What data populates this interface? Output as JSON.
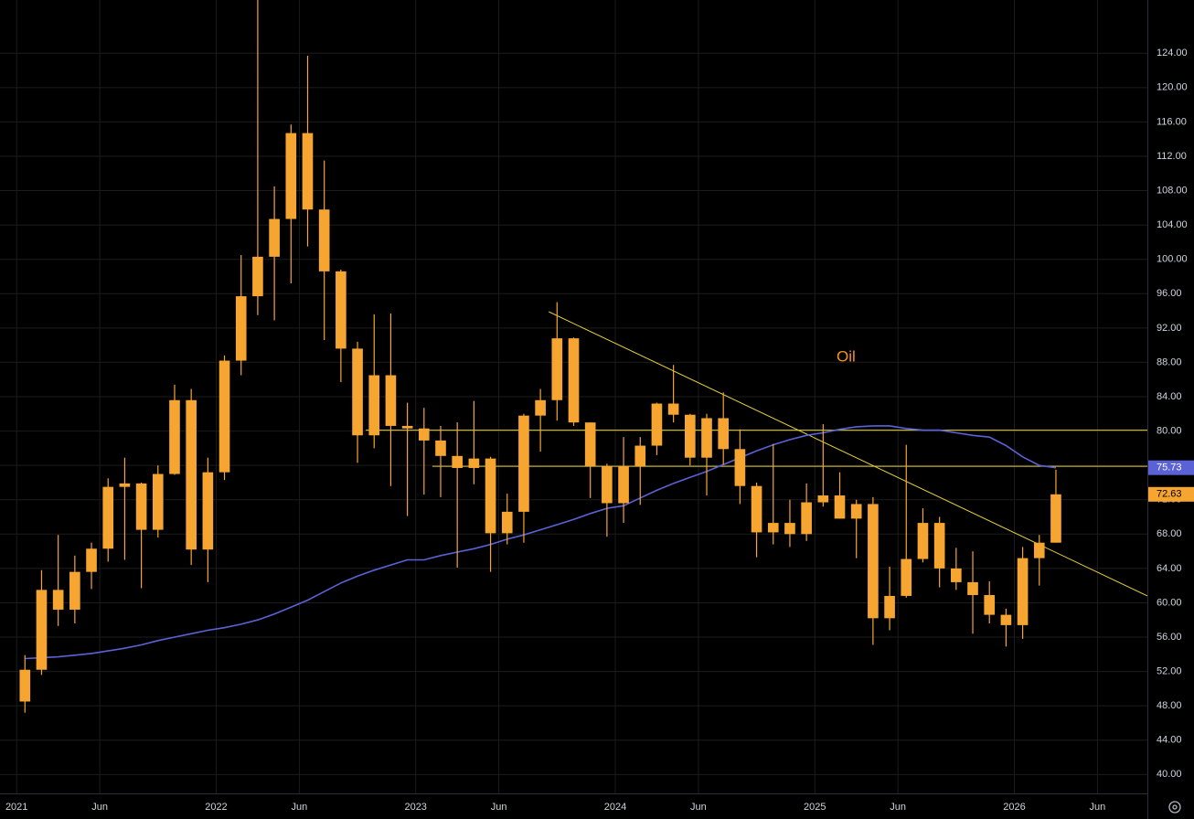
{
  "chart_data": {
    "type": "candlestick",
    "title": "Oil",
    "x": [
      "2021-01",
      "2021-02",
      "2021-03",
      "2021-04",
      "2021-05",
      "2021-06",
      "2021-07",
      "2021-08",
      "2021-09",
      "2021-10",
      "2021-11",
      "2021-12",
      "2022-01",
      "2022-02",
      "2022-03",
      "2022-04",
      "2022-05",
      "2022-06",
      "2022-07",
      "2022-08",
      "2022-09",
      "2022-10",
      "2022-11",
      "2022-12",
      "2023-01",
      "2023-02",
      "2023-03",
      "2023-04",
      "2023-05",
      "2023-06",
      "2023-07",
      "2023-08",
      "2023-09",
      "2023-10",
      "2023-11",
      "2023-12",
      "2024-01",
      "2024-02",
      "2024-03",
      "2024-04",
      "2024-05",
      "2024-06",
      "2024-07",
      "2024-08",
      "2024-09",
      "2024-10",
      "2024-11",
      "2024-12",
      "2025-01",
      "2025-02",
      "2025-03",
      "2025-04",
      "2025-05",
      "2025-06",
      "2025-07",
      "2025-08",
      "2025-09",
      "2025-10",
      "2025-11",
      "2025-12",
      "2026-01",
      "2026-02",
      "2026-03"
    ],
    "open": [
      48.5,
      52.2,
      61.5,
      59.2,
      63.6,
      66.3,
      73.5,
      73.9,
      68.5,
      75.0,
      83.6,
      66.2,
      75.2,
      88.2,
      95.7,
      100.3,
      104.7,
      114.7,
      105.8,
      98.6,
      89.6,
      79.5,
      86.5,
      80.6,
      80.3,
      78.9,
      77.1,
      75.7,
      76.8,
      68.1,
      70.6,
      81.8,
      83.6,
      90.8,
      81.0,
      75.9,
      71.6,
      75.9,
      78.3,
      83.2,
      81.9,
      76.9,
      81.5,
      77.9,
      73.6,
      68.2,
      69.3,
      68.0,
      71.7,
      72.5,
      69.8,
      71.5,
      58.2,
      60.8,
      65.1,
      69.3,
      64.0,
      62.4,
      60.9,
      58.6,
      57.4,
      65.2,
      67.0
    ],
    "high": [
      53.9,
      63.8,
      67.9,
      65.5,
      67.0,
      74.5,
      76.9,
      74.0,
      76.0,
      85.4,
      84.9,
      76.9,
      88.8,
      100.5,
      130.5,
      108.5,
      115.7,
      123.7,
      111.5,
      98.8,
      90.4,
      93.6,
      93.7,
      83.3,
      82.7,
      80.6,
      81.0,
      83.5,
      77.0,
      72.7,
      82.0,
      84.9,
      95.0,
      90.9,
      81.0,
      76.2,
      79.3,
      79.3,
      83.3,
      87.7,
      82.0,
      82.0,
      84.5,
      80.2,
      74.0,
      78.5,
      72.0,
      73.9,
      80.8,
      75.2,
      72.0,
      72.3,
      64.2,
      78.4,
      71.0,
      70.0,
      66.4,
      66.0,
      62.5,
      59.3,
      66.5,
      67.9,
      75.5
    ],
    "low": [
      47.2,
      51.6,
      57.3,
      57.6,
      61.6,
      64.8,
      65.0,
      61.7,
      67.6,
      74.9,
      64.4,
      62.4,
      74.3,
      86.5,
      93.5,
      92.9,
      97.2,
      101.5,
      90.6,
      85.7,
      76.3,
      78.0,
      73.6,
      70.1,
      72.6,
      72.3,
      64.1,
      73.8,
      63.6,
      66.8,
      67.0,
      77.6,
      81.2,
      80.6,
      72.2,
      67.7,
      69.3,
      71.4,
      77.2,
      81.0,
      76.0,
      72.5,
      76.1,
      71.5,
      65.3,
      66.8,
      66.5,
      67.2,
      71.2,
      69.8,
      65.2,
      55.1,
      56.8,
      60.6,
      64.7,
      61.8,
      61.5,
      56.4,
      57.6,
      54.9,
      55.8,
      62.0,
      67.0
    ],
    "close": [
      52.2,
      61.5,
      59.2,
      63.6,
      66.3,
      73.5,
      73.9,
      68.5,
      75.0,
      83.6,
      66.2,
      75.2,
      88.2,
      95.7,
      100.3,
      104.7,
      114.7,
      105.8,
      98.6,
      89.6,
      79.5,
      86.5,
      80.6,
      80.3,
      78.9,
      77.1,
      75.7,
      76.8,
      68.1,
      70.6,
      81.8,
      83.6,
      90.8,
      81.0,
      75.9,
      71.6,
      75.9,
      78.3,
      83.2,
      81.9,
      76.9,
      81.5,
      77.9,
      73.6,
      68.2,
      69.3,
      68.0,
      71.7,
      72.5,
      69.8,
      71.5,
      58.2,
      60.8,
      65.1,
      69.3,
      64.0,
      62.4,
      60.9,
      58.6,
      57.4,
      65.2,
      67.0,
      72.63
    ],
    "color": "#f7a531",
    "overlay": {
      "color": "#5b62d6",
      "values": [
        53.5,
        53.6,
        53.7,
        53.9,
        54.1,
        54.4,
        54.7,
        55.1,
        55.6,
        56.0,
        56.4,
        56.8,
        57.1,
        57.5,
        58.0,
        58.7,
        59.5,
        60.3,
        61.3,
        62.3,
        63.1,
        63.8,
        64.4,
        65.0,
        65.0,
        65.5,
        65.9,
        66.3,
        66.8,
        67.4,
        67.9,
        68.5,
        69.1,
        69.7,
        70.4,
        71.0,
        71.3,
        72.2,
        73.1,
        73.9,
        74.6,
        75.3,
        76.1,
        76.9,
        77.7,
        78.4,
        79.0,
        79.5,
        79.8,
        80.2,
        80.5,
        80.6,
        80.6,
        80.3,
        80.1,
        80.1,
        79.8,
        79.5,
        79.3,
        78.3,
        77.0,
        76.0,
        75.73
      ]
    },
    "hlines": [
      {
        "value": 80.1,
        "start": "2022-10"
      },
      {
        "value": 75.9,
        "start": "2023-02"
      }
    ],
    "drawing_color": "#e6d13a",
    "trendline": {
      "x": [
        "2023-09",
        "2026-09"
      ],
      "values": [
        93.9,
        60.8
      ]
    },
    "xlim": [
      "2020-12",
      "2026-09"
    ],
    "xticks": [
      {
        "value": "2021-01",
        "label": "2021"
      },
      {
        "value": "2021-06",
        "label": "Jun"
      },
      {
        "value": "2022-01",
        "label": "2022"
      },
      {
        "value": "2022-06",
        "label": "Jun"
      },
      {
        "value": "2023-01",
        "label": "2023"
      },
      {
        "value": "2023-06",
        "label": "Jun"
      },
      {
        "value": "2024-01",
        "label": "2024"
      },
      {
        "value": "2024-06",
        "label": "Jun"
      },
      {
        "value": "2025-01",
        "label": "2025"
      },
      {
        "value": "2025-06",
        "label": "Jun"
      },
      {
        "value": "2026-01",
        "label": "2026"
      },
      {
        "value": "2026-06",
        "label": "Jun"
      }
    ],
    "ylim": [
      37.8,
      130.2
    ],
    "yticks": [
      {
        "value": 40,
        "label": "40.00"
      },
      {
        "value": 44,
        "label": "44.00"
      },
      {
        "value": 48,
        "label": "48.00"
      },
      {
        "value": 52,
        "label": "52.00"
      },
      {
        "value": 56,
        "label": "56.00"
      },
      {
        "value": 60,
        "label": "60.00"
      },
      {
        "value": 64,
        "label": "64.00"
      },
      {
        "value": 68,
        "label": "68.00"
      },
      {
        "value": 72,
        "label": "72.00"
      },
      {
        "value": 76,
        "label": "76.00"
      },
      {
        "value": 80,
        "label": "80.00"
      },
      {
        "value": 84,
        "label": "84.00"
      },
      {
        "value": 88,
        "label": "88.00"
      },
      {
        "value": 92,
        "label": "92.00"
      },
      {
        "value": 96,
        "label": "96.00"
      },
      {
        "value": 100,
        "label": "100.00"
      },
      {
        "value": 104,
        "label": "104.00"
      },
      {
        "value": 108,
        "label": "108.00"
      },
      {
        "value": 112,
        "label": "112.00"
      },
      {
        "value": 116,
        "label": "116.00"
      },
      {
        "value": 120,
        "label": "120.00"
      },
      {
        "value": 124,
        "label": "124.00"
      }
    ],
    "grid": true
  }
}
